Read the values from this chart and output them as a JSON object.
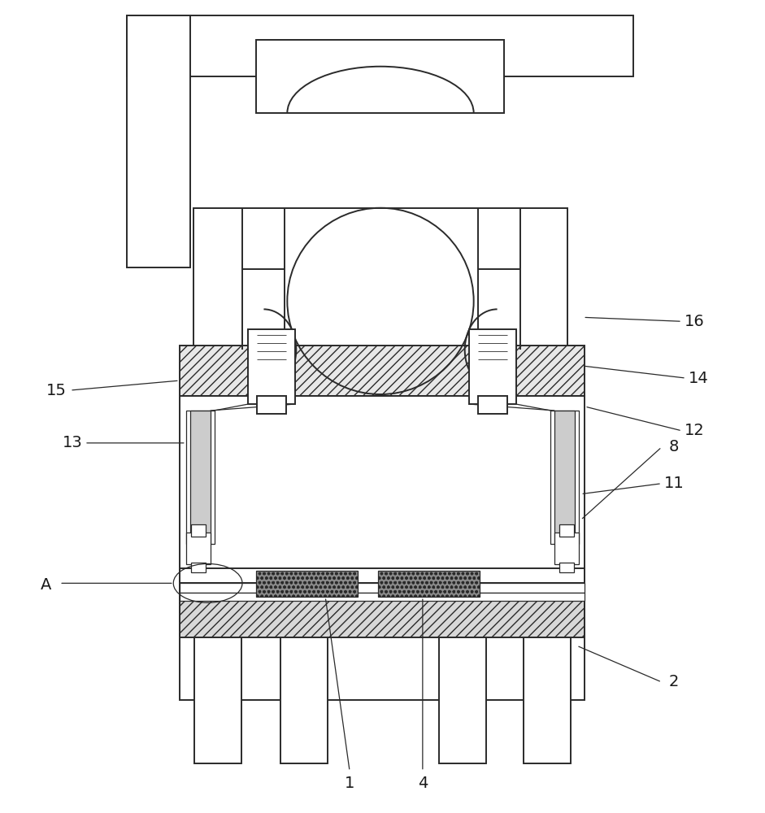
{
  "bg_color": "#ffffff",
  "lc": "#2a2a2a",
  "lw": 1.4,
  "tlw": 0.9,
  "label_color": "#1a1a1a",
  "label_fs": 14
}
